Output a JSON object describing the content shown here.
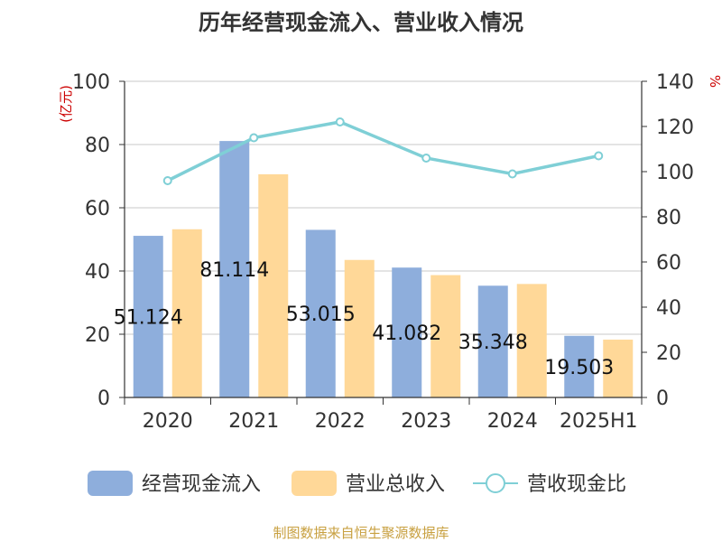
{
  "chart_data": {
    "type": "bar",
    "title": "历年经营现金流入、营业收入情况",
    "categories": [
      "2020",
      "2021",
      "2022",
      "2023",
      "2024",
      "2025H1"
    ],
    "left_axis": {
      "unit": "(亿元)",
      "ylim": [
        0,
        100
      ],
      "ticks": [
        "0",
        "20",
        "40",
        "60",
        "80",
        "100"
      ]
    },
    "right_axis": {
      "unit": "%",
      "ylim": [
        0,
        140
      ],
      "ticks": [
        "0",
        "20",
        "40",
        "60",
        "80",
        "100",
        "120",
        "140"
      ]
    },
    "series": [
      {
        "name": "经营现金流入",
        "type": "bar",
        "axis": "left",
        "color": "#8eaedc",
        "values": [
          51.124,
          81.114,
          53.015,
          41.082,
          35.348,
          19.503
        ],
        "labels": [
          "51.124",
          "81.114",
          "53.015",
          "41.082",
          "35.348",
          "19.503"
        ]
      },
      {
        "name": "营业总收入",
        "type": "bar",
        "axis": "left",
        "color": "#ffd898",
        "values": [
          53.2,
          70.6,
          43.5,
          38.7,
          35.9,
          18.3
        ]
      },
      {
        "name": "营收现金比",
        "type": "line",
        "axis": "right",
        "color": "#7fcfd6",
        "values": [
          96,
          115,
          122,
          106,
          99,
          107
        ]
      }
    ],
    "grid": true,
    "legend": "bottom"
  },
  "source": "制图数据来自恒生聚源数据库"
}
